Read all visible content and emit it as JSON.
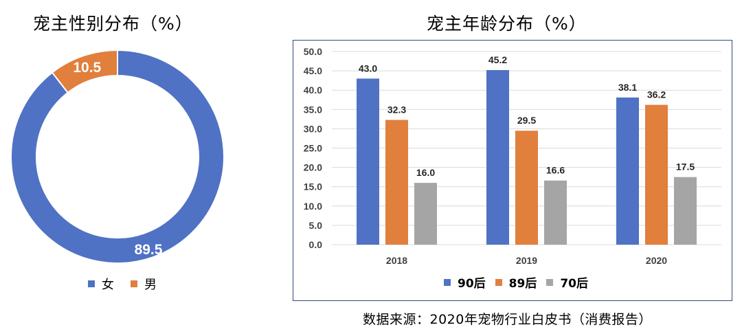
{
  "pie": {
    "title": "宠主性别分布（%）",
    "legend": [
      {
        "label": "女",
        "color": "#4f72c4"
      },
      {
        "label": "男",
        "color": "#e17f3c"
      }
    ]
  },
  "bar": {
    "title": "宠主年龄分布（%）"
  },
  "source": "数据来源：2020年宠物行业白皮书（消费报告）",
  "chart_data": [
    {
      "type": "pie",
      "title": "宠主性别分布（%）",
      "style": "donut",
      "labels": [
        "女",
        "男"
      ],
      "values": [
        89.5,
        10.5
      ],
      "value_labels": [
        "89.5",
        "10.5"
      ],
      "colors": [
        "#4f72c4",
        "#e17f3c"
      ],
      "legend_position": "bottom"
    },
    {
      "type": "bar",
      "title": "宠主年龄分布（%）",
      "categories": [
        "2018",
        "2019",
        "2020"
      ],
      "series": [
        {
          "name": "90后",
          "values": [
            43.0,
            45.2,
            38.1
          ],
          "labels": [
            "43.0",
            "45.2",
            "38.1"
          ],
          "color": "#4f72c4"
        },
        {
          "name": "89后",
          "values": [
            32.3,
            29.5,
            36.2
          ],
          "labels": [
            "32.3",
            "29.5",
            "36.2"
          ],
          "color": "#e17f3c"
        },
        {
          "name": "70后",
          "values": [
            16.0,
            16.6,
            17.5
          ],
          "labels": [
            "16.0",
            "16.6",
            "17.5"
          ],
          "color": "#a5a5a5"
        }
      ],
      "ylim": [
        0,
        50
      ],
      "yticks": [
        "0.0",
        "5.0",
        "10.0",
        "15.0",
        "20.0",
        "25.0",
        "30.0",
        "35.0",
        "40.0",
        "45.0",
        "50.0"
      ],
      "grid": true,
      "legend_position": "bottom",
      "xlabel": "",
      "ylabel": ""
    }
  ]
}
